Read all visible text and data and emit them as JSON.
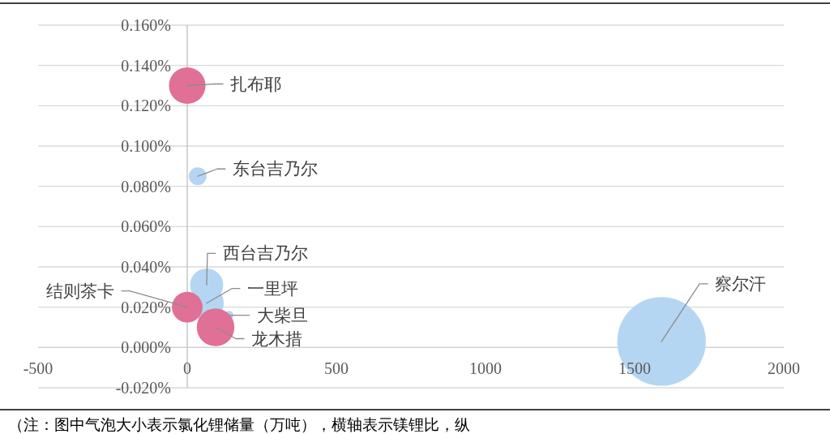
{
  "chart_data": {
    "type": "bubble",
    "xlim": [
      -500,
      2000
    ],
    "xticks": [
      -500,
      0,
      500,
      1000,
      1500,
      2000
    ],
    "ylim": [
      -0.02,
      0.16
    ],
    "yticks": [
      {
        "value": -0.02,
        "label": "-0.020%"
      },
      {
        "value": 0,
        "label": "0.000%"
      },
      {
        "value": 0.02,
        "label": "0.020%"
      },
      {
        "value": 0.04,
        "label": "0.040%"
      },
      {
        "value": 0.06,
        "label": "0.060%"
      },
      {
        "value": 0.08,
        "label": "0.080%"
      },
      {
        "value": 0.1,
        "label": "0.100%"
      },
      {
        "value": 0.12,
        "label": "0.120%"
      },
      {
        "value": 0.14,
        "label": "0.140%"
      },
      {
        "value": 0.16,
        "label": "0.160%"
      }
    ],
    "grid": "y",
    "series": [
      {
        "color": "#b4d6f3",
        "x": [
          35,
          65,
          65,
          140,
          1590
        ],
        "values": [
          0.085,
          0.031,
          0.022,
          0.016,
          0.003
        ],
        "sizes": [
          0.04,
          0.14,
          0.15,
          0.01,
          1
        ]
      },
      {
        "color": "#e07096",
        "x": [
          0,
          0,
          95
        ],
        "values": [
          0.13,
          0.02,
          0.01
        ],
        "sizes": [
          0.17,
          0.12,
          0.18
        ]
      }
    ],
    "annotations": [
      {
        "text": "扎布耶",
        "x": 0,
        "y": 0.13
      },
      {
        "text": "东台吉乃尔",
        "x": 35,
        "y": 0.085
      },
      {
        "text": "西台吉乃尔",
        "x": 65,
        "y": 0.031
      },
      {
        "text": "一里坪",
        "x": 65,
        "y": 0.022
      },
      {
        "text": "大柴旦",
        "x": 140,
        "y": 0.016
      },
      {
        "text": "结则茶卡",
        "x": 0,
        "y": 0.02
      },
      {
        "text": "龙木措",
        "x": 95,
        "y": 0.01
      },
      {
        "text": "察尔汗",
        "x": 1590,
        "y": 0.003
      },
      "（注：图中气泡大小表示氯化锂储量（万吨），横轴表示镁锂比，纵"
    ]
  }
}
